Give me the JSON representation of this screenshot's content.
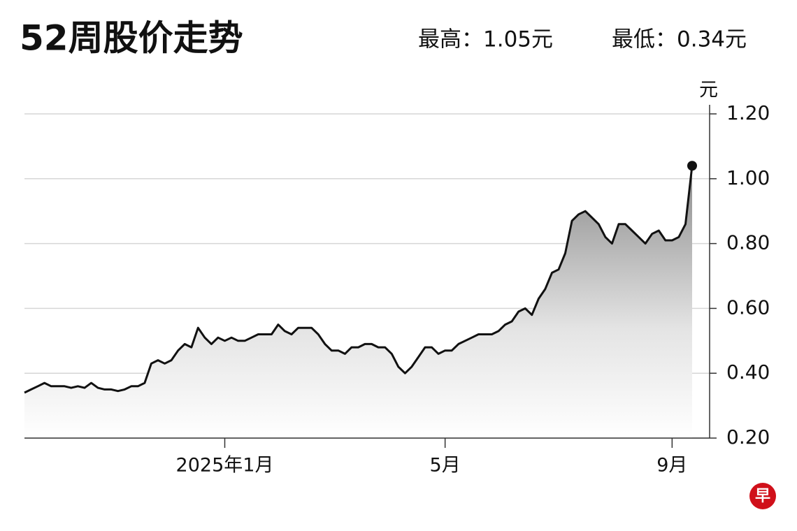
{
  "chart_data": {
    "type": "line",
    "title": "52周股价走势",
    "annotations": [
      "最高：1.05元",
      "最低：0.34元"
    ],
    "y_label": "元",
    "logo": "早",
    "categories": [
      null,
      null,
      null,
      null,
      null,
      null,
      null,
      null,
      null,
      null,
      null,
      null,
      null,
      null,
      null,
      null,
      null,
      null,
      null,
      null,
      null,
      null,
      null,
      null,
      null,
      null,
      null,
      null,
      null,
      null,
      "2025年1月",
      null,
      null,
      null,
      null,
      null,
      null,
      null,
      null,
      null,
      null,
      null,
      null,
      null,
      null,
      null,
      null,
      null,
      null,
      null,
      null,
      null,
      null,
      null,
      null,
      null,
      null,
      null,
      null,
      null,
      null,
      null,
      null,
      "5月",
      null,
      null,
      null,
      null,
      null,
      null,
      null,
      null,
      null,
      null,
      null,
      null,
      null,
      null,
      null,
      null,
      null,
      null,
      null,
      null,
      null,
      null,
      null,
      null,
      null,
      null,
      null,
      null,
      null,
      null,
      null,
      null,
      null,
      "9月",
      null,
      null,
      null
    ],
    "values": [
      0.34,
      0.35,
      0.36,
      0.37,
      0.36,
      0.36,
      0.36,
      0.355,
      0.36,
      0.355,
      0.37,
      0.355,
      0.35,
      0.35,
      0.345,
      0.35,
      0.36,
      0.36,
      0.37,
      0.43,
      0.44,
      0.43,
      0.44,
      0.47,
      0.49,
      0.48,
      0.54,
      0.51,
      0.49,
      0.51,
      0.5,
      0.51,
      0.5,
      0.5,
      0.51,
      0.52,
      0.52,
      0.52,
      0.55,
      0.53,
      0.52,
      0.54,
      0.54,
      0.54,
      0.52,
      0.49,
      0.47,
      0.47,
      0.46,
      0.48,
      0.48,
      0.49,
      0.49,
      0.48,
      0.48,
      0.46,
      0.42,
      0.4,
      0.42,
      0.45,
      0.48,
      0.48,
      0.46,
      0.47,
      0.47,
      0.49,
      0.5,
      0.51,
      0.52,
      0.52,
      0.52,
      0.53,
      0.55,
      0.56,
      0.59,
      0.6,
      0.58,
      0.63,
      0.66,
      0.71,
      0.72,
      0.77,
      0.87,
      0.89,
      0.9,
      0.88,
      0.86,
      0.82,
      0.8,
      0.86,
      0.86,
      0.84,
      0.82,
      0.8,
      0.83,
      0.84,
      0.81,
      0.81,
      0.82,
      0.86,
      1.04
    ],
    "color": "#111111",
    "area": true,
    "end_marker": true,
    "ylim": [
      0.2,
      1.2
    ],
    "yticks": [
      {
        "value": 0.2,
        "label": "0.20"
      },
      {
        "value": 0.4,
        "label": "0.40"
      },
      {
        "value": 0.6,
        "label": "0.60"
      },
      {
        "value": 0.8,
        "label": "0.80"
      },
      {
        "value": 1.0,
        "label": "1.00"
      },
      {
        "value": 1.2,
        "label": "1.20"
      }
    ],
    "grid": true
  }
}
